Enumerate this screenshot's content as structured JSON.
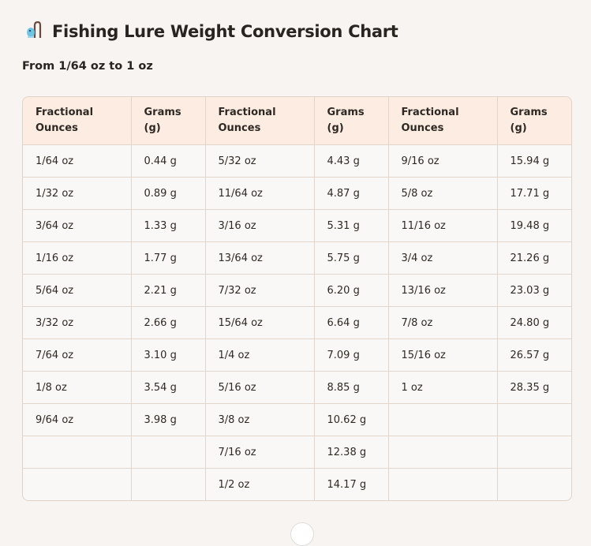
{
  "title": "Fishing Lure Weight Conversion Chart",
  "title_icon": "fishing-pole-icon",
  "subtitle": "From 1/64 oz to 1 oz",
  "table": {
    "headers": [
      [
        "Fractional",
        "Ounces"
      ],
      [
        "Grams",
        "(g)"
      ],
      [
        "Fractional",
        "Ounces"
      ],
      [
        "Grams",
        "(g)"
      ],
      [
        "Fractional",
        "Ounces"
      ],
      [
        "Grams",
        "(g)"
      ]
    ],
    "rows": [
      [
        "1/64 oz",
        "0.44 g",
        "5/32 oz",
        "4.43 g",
        "9/16 oz",
        "15.94 g"
      ],
      [
        "1/32 oz",
        "0.89 g",
        "11/64 oz",
        "4.87 g",
        "5/8 oz",
        "17.71 g"
      ],
      [
        "3/64 oz",
        "1.33 g",
        "3/16 oz",
        "5.31 g",
        "11/16 oz",
        "19.48 g"
      ],
      [
        "1/16 oz",
        "1.77 g",
        "13/64 oz",
        "5.75 g",
        "3/4 oz",
        "21.26 g"
      ],
      [
        "5/64 oz",
        "2.21 g",
        "7/32 oz",
        "6.20 g",
        "13/16 oz",
        "23.03 g"
      ],
      [
        "3/32 oz",
        "2.66 g",
        "15/64 oz",
        "6.64 g",
        "7/8 oz",
        "24.80 g"
      ],
      [
        "7/64 oz",
        "3.10 g",
        "1/4 oz",
        "7.09 g",
        "15/16 oz",
        "26.57 g"
      ],
      [
        "1/8 oz",
        "3.54 g",
        "5/16 oz",
        "8.85 g",
        "1 oz",
        "28.35 g"
      ],
      [
        "9/64 oz",
        "3.98 g",
        "3/8 oz",
        "10.62 g",
        "",
        ""
      ],
      [
        "",
        "",
        "7/16 oz",
        "12.38 g",
        "",
        ""
      ],
      [
        "",
        "",
        "1/2 oz",
        "14.17 g",
        "",
        ""
      ]
    ]
  },
  "colors": {
    "header_bg": "#fcece1",
    "page_bg": "#f7f4f1",
    "border": "#e2d6cc"
  }
}
